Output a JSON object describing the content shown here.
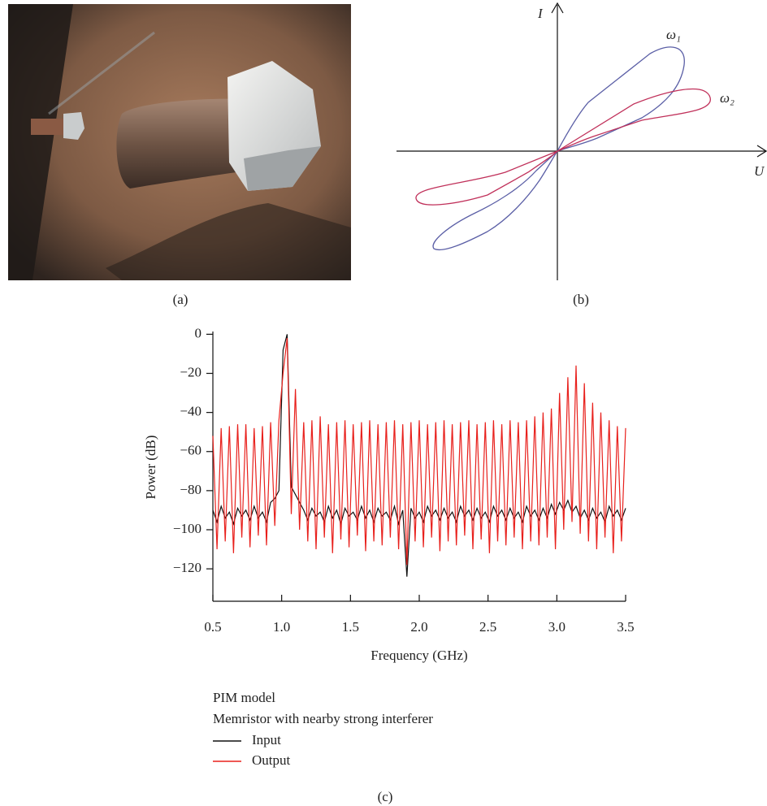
{
  "captions": {
    "a": "(a)",
    "b": "(b)",
    "c": "(c)"
  },
  "diagram": {
    "y_axis": "I",
    "x_axis": "U",
    "curves": [
      {
        "label": "ω₁",
        "color": "#5b5fa6"
      },
      {
        "label": "ω₂",
        "color": "#c0305a"
      }
    ]
  },
  "chart_data": {
    "type": "line",
    "x_label": "Frequency (GHz)",
    "y_label": "Power (dB)",
    "legend_title": "PIM model",
    "legend_subtitle": "Memristor with nearby strong interferer",
    "x": [
      0.5,
      0.53,
      0.56,
      0.59,
      0.62,
      0.65,
      0.68,
      0.71,
      0.74,
      0.77,
      0.8,
      0.83,
      0.86,
      0.89,
      0.92,
      0.95,
      0.98,
      1.01,
      1.04,
      1.07,
      1.1,
      1.13,
      1.16,
      1.19,
      1.22,
      1.25,
      1.28,
      1.31,
      1.34,
      1.37,
      1.4,
      1.43,
      1.46,
      1.49,
      1.52,
      1.55,
      1.58,
      1.61,
      1.64,
      1.67,
      1.7,
      1.73,
      1.76,
      1.79,
      1.82,
      1.85,
      1.88,
      1.91,
      1.94,
      1.97,
      2.0,
      2.03,
      2.06,
      2.09,
      2.12,
      2.15,
      2.18,
      2.21,
      2.24,
      2.27,
      2.3,
      2.33,
      2.36,
      2.39,
      2.42,
      2.45,
      2.48,
      2.51,
      2.54,
      2.57,
      2.6,
      2.63,
      2.66,
      2.69,
      2.72,
      2.75,
      2.78,
      2.81,
      2.84,
      2.87,
      2.9,
      2.93,
      2.96,
      2.99,
      3.02,
      3.05,
      3.08,
      3.11,
      3.14,
      3.17,
      3.2,
      3.23,
      3.26,
      3.29,
      3.32,
      3.35,
      3.38,
      3.41,
      3.44,
      3.47,
      3.5
    ],
    "series": [
      {
        "name": "Input",
        "color": "#111111",
        "values": [
          -90,
          -96,
          -88,
          -94,
          -91,
          -97,
          -89,
          -93,
          -90,
          -95,
          -88,
          -94,
          -91,
          -96,
          -86,
          -84,
          -80,
          -8,
          0,
          -78,
          -82,
          -86,
          -90,
          -95,
          -89,
          -93,
          -91,
          -96,
          -88,
          -94,
          -90,
          -97,
          -89,
          -93,
          -91,
          -95,
          -88,
          -94,
          -90,
          -96,
          -89,
          -93,
          -91,
          -95,
          -88,
          -97,
          -90,
          -124,
          -89,
          -94,
          -91,
          -96,
          -88,
          -93,
          -90,
          -95,
          -89,
          -94,
          -91,
          -96,
          -88,
          -93,
          -90,
          -95,
          -89,
          -94,
          -91,
          -96,
          -88,
          -93,
          -90,
          -95,
          -89,
          -94,
          -91,
          -96,
          -88,
          -93,
          -90,
          -95,
          -89,
          -94,
          -87,
          -92,
          -86,
          -90,
          -85,
          -91,
          -88,
          -94,
          -90,
          -95,
          -89,
          -94,
          -91,
          -96,
          -88,
          -93,
          -90,
          -95,
          -89
        ]
      },
      {
        "name": "Output",
        "color": "#e8201c",
        "values": [
          -52,
          -110,
          -48,
          -106,
          -47,
          -112,
          -46,
          -104,
          -46,
          -109,
          -48,
          -103,
          -47,
          -108,
          -45,
          -98,
          -44,
          -20,
          -2,
          -92,
          -28,
          -100,
          -45,
          -106,
          -44,
          -110,
          -42,
          -104,
          -46,
          -112,
          -45,
          -105,
          -44,
          -109,
          -46,
          -103,
          -45,
          -111,
          -44,
          -106,
          -46,
          -108,
          -45,
          -104,
          -44,
          -110,
          -46,
          -118,
          -45,
          -106,
          -44,
          -109,
          -46,
          -104,
          -45,
          -111,
          -44,
          -106,
          -46,
          -108,
          -45,
          -103,
          -44,
          -110,
          -46,
          -105,
          -45,
          -112,
          -44,
          -106,
          -46,
          -108,
          -44,
          -104,
          -45,
          -110,
          -44,
          -106,
          -42,
          -108,
          -40,
          -104,
          -38,
          -110,
          -30,
          -100,
          -22,
          -96,
          -16,
          -102,
          -25,
          -106,
          -35,
          -110,
          -40,
          -104,
          -44,
          -112,
          -47,
          -106,
          -48
        ]
      }
    ],
    "xlim": [
      0.5,
      3.5
    ],
    "ylim": [
      -137,
      1
    ],
    "xticks": [
      0.5,
      {
        "value": 1,
        "label": "1.0"
      },
      1.5,
      {
        "value": 2,
        "label": "2.0"
      },
      2.5,
      {
        "value": 3,
        "label": "3.0"
      },
      3.5
    ],
    "yticks": [
      0,
      {
        "value": -20,
        "label": "−20"
      },
      {
        "value": -40,
        "label": "−40"
      },
      {
        "value": -60,
        "label": "−60"
      },
      {
        "value": -80,
        "label": "−80"
      },
      {
        "value": -100,
        "label": "−100"
      },
      {
        "value": -120,
        "label": "−120"
      }
    ]
  }
}
